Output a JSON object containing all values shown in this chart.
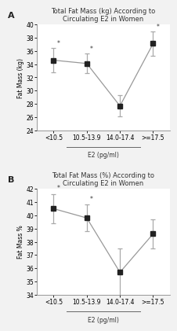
{
  "panel_A": {
    "title": "Total Fat Mass (kg) According to\nCirculating E2 in Women",
    "ylabel": "Fat Mass (kg)",
    "xlabel": "E2 (pg/ml)",
    "categories": [
      "<10.5",
      "10.5-13.9",
      "14.0-17.4",
      ">=17.5"
    ],
    "means": [
      34.6,
      34.1,
      27.7,
      37.1
    ],
    "errors": [
      1.8,
      1.5,
      1.6,
      1.8
    ],
    "ylim": [
      24,
      40
    ],
    "yticks": [
      24,
      26,
      28,
      30,
      32,
      34,
      36,
      38,
      40
    ],
    "starred": [
      0,
      1,
      3
    ],
    "panel_label": "A"
  },
  "panel_B": {
    "title": "Total Fat Mass (%) According to\nCirculating E2 in Women",
    "ylabel": "Fat Mass %",
    "xlabel": "E2 (pg/ml)",
    "categories": [
      "<10.5",
      "10.5-13.9",
      "14.0-17.4",
      ">=17.5"
    ],
    "means": [
      40.5,
      39.8,
      35.7,
      38.6
    ],
    "errors": [
      1.1,
      1.0,
      1.8,
      1.1
    ],
    "ylim": [
      34,
      42
    ],
    "yticks": [
      34,
      35,
      36,
      37,
      38,
      39,
      40,
      41,
      42
    ],
    "starred": [
      0,
      1
    ],
    "panel_label": "B"
  },
  "line_color": "#999999",
  "marker_color": "#222222",
  "marker_size": 4,
  "marker_style": "s",
  "error_color": "#aaaaaa",
  "background_color": "#f2f2f2",
  "plot_bg": "#ffffff",
  "title_fontsize": 6.0,
  "label_fontsize": 5.5,
  "tick_fontsize": 5.5,
  "panel_label_fontsize": 8
}
